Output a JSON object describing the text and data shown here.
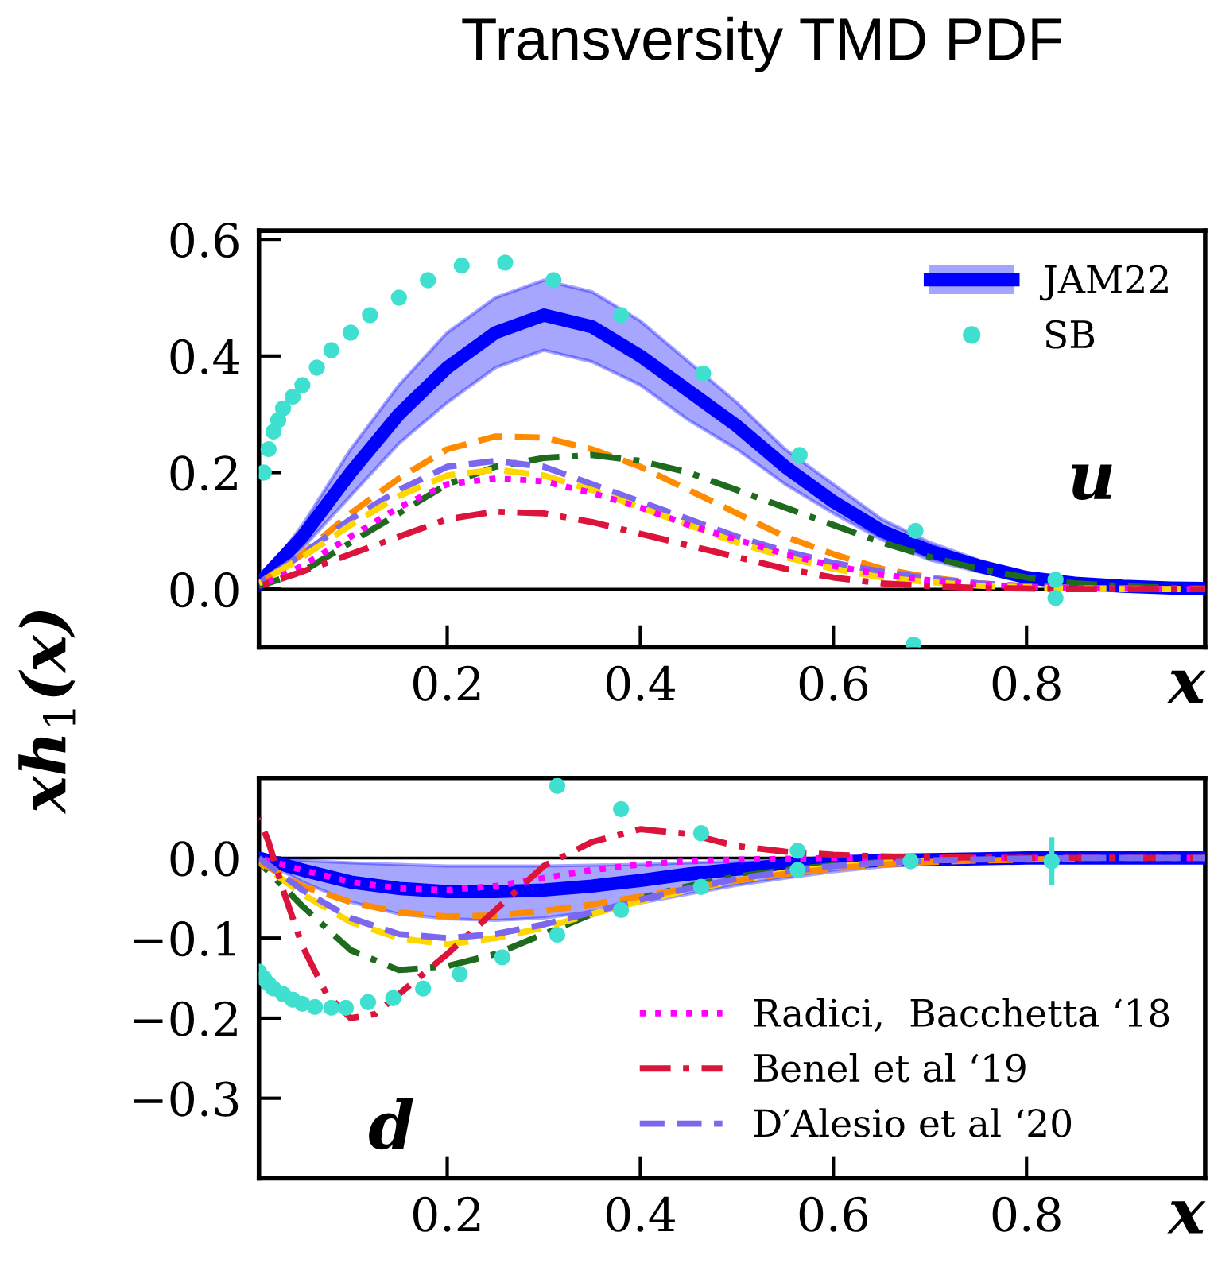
{
  "chart_data": [
    {
      "type": "line",
      "title": "Transversity TMD PDF",
      "ylabel": "xh$_{1}$(x)",
      "xlabel": "x",
      "annotations": [
        "u"
      ],
      "legend": "top right",
      "x": [
        0.005,
        0.05,
        0.1,
        0.15,
        0.2,
        0.25,
        0.3,
        0.35,
        0.4,
        0.45,
        0.5,
        0.55,
        0.6,
        0.65,
        0.7,
        0.75,
        0.8,
        0.85,
        0.9,
        0.95,
        0.985
      ],
      "xlim": [
        0.005,
        0.985
      ],
      "xticks": [
        0.2,
        0.4,
        0.6,
        0.8
      ],
      "ylim": [
        -0.1,
        0.615
      ],
      "yticks": [
        {
          "value": 0.0,
          "label": "0.0"
        },
        {
          "value": 0.2,
          "label": "0.2"
        },
        {
          "value": 0.4,
          "label": "0.4"
        },
        {
          "value": 0.6,
          "label": "0.6"
        }
      ],
      "series": [
        {
          "type": "line",
          "color": "#ff8c00",
          "line_style": "dashed",
          "values": [
            0.01,
            0.06,
            0.13,
            0.19,
            0.24,
            0.262,
            0.26,
            0.24,
            0.21,
            0.17,
            0.13,
            0.09,
            0.06,
            0.035,
            0.02,
            0.01,
            0.005,
            0.002,
            0.001,
            0,
            0
          ]
        },
        {
          "type": "line",
          "color": "#1e6b1e",
          "line_style": "dashdot",
          "values": [
            0.005,
            0.03,
            0.08,
            0.13,
            0.18,
            0.21,
            0.225,
            0.23,
            0.22,
            0.2,
            0.17,
            0.14,
            0.11,
            0.08,
            0.055,
            0.035,
            0.02,
            0.01,
            0.005,
            0.002,
            0.001
          ]
        },
        {
          "type": "line",
          "color": "#7b68ee",
          "line_style": "dashed",
          "values": [
            0.01,
            0.06,
            0.12,
            0.17,
            0.21,
            0.22,
            0.21,
            0.18,
            0.15,
            0.12,
            0.09,
            0.065,
            0.045,
            0.03,
            0.018,
            0.01,
            0.005,
            0.002,
            0.001,
            0,
            0
          ]
        },
        {
          "type": "line",
          "color": "#ffd700",
          "line_style": "dashed",
          "values": [
            0.01,
            0.055,
            0.11,
            0.16,
            0.195,
            0.205,
            0.195,
            0.17,
            0.14,
            0.11,
            0.08,
            0.055,
            0.035,
            0.02,
            0.012,
            0.006,
            0.003,
            0.001,
            0,
            0,
            0
          ]
        },
        {
          "type": "line",
          "color": "#ff00ff",
          "line_style": "dotted",
          "values": [
            0.005,
            0.04,
            0.09,
            0.14,
            0.18,
            0.19,
            0.185,
            0.165,
            0.14,
            0.11,
            0.085,
            0.06,
            0.04,
            0.025,
            0.015,
            0.008,
            0.004,
            0.002,
            0.001,
            0,
            0
          ]
        },
        {
          "type": "line",
          "color": "#dc143c",
          "line_style": "dashdot",
          "values": [
            0.005,
            0.03,
            0.06,
            0.09,
            0.12,
            0.133,
            0.13,
            0.115,
            0.095,
            0.075,
            0.055,
            0.035,
            0.02,
            0.01,
            0.005,
            0.002,
            0.001,
            0,
            0,
            0,
            0
          ]
        },
        {
          "type": "line",
          "name": "JAM22",
          "color": "#0000ff",
          "line_style": "solid",
          "values": [
            0.01,
            0.09,
            0.2,
            0.3,
            0.38,
            0.44,
            0.47,
            0.45,
            0.4,
            0.34,
            0.28,
            0.21,
            0.15,
            0.1,
            0.065,
            0.04,
            0.02,
            0.01,
            0.005,
            0.002,
            0.001
          ],
          "upper": [
            0.01,
            0.11,
            0.24,
            0.35,
            0.44,
            0.5,
            0.53,
            0.51,
            0.46,
            0.39,
            0.32,
            0.24,
            0.18,
            0.12,
            0.08,
            0.05,
            0.025,
            0.012,
            0.006,
            0.003,
            0.001
          ],
          "lower": [
            0.01,
            0.07,
            0.16,
            0.25,
            0.32,
            0.38,
            0.41,
            0.39,
            0.35,
            0.29,
            0.24,
            0.18,
            0.13,
            0.085,
            0.05,
            0.03,
            0.015,
            0.008,
            0.004,
            0.002,
            0.001
          ]
        },
        {
          "type": "scatter",
          "name": "SB",
          "color": "#40e0d0",
          "marker": "circle",
          "x": [
            0.01,
            0.015,
            0.02,
            0.025,
            0.03,
            0.04,
            0.05,
            0.065,
            0.08,
            0.1,
            0.12,
            0.15,
            0.18,
            0.215,
            0.26,
            0.31,
            0.38,
            0.465,
            0.565,
            0.685,
            0.683,
            0.83,
            0.83
          ],
          "values": [
            0.2,
            0.24,
            0.27,
            0.29,
            0.31,
            0.33,
            0.35,
            0.38,
            0.41,
            0.44,
            0.47,
            0.5,
            0.53,
            0.555,
            0.56,
            0.53,
            0.47,
            0.37,
            0.23,
            0.1,
            -0.095,
            0.016,
            -0.015
          ]
        }
      ]
    },
    {
      "type": "line",
      "xlabel": "x",
      "annotations": [
        "d"
      ],
      "legend": "bottom right",
      "x": [
        0.005,
        0.05,
        0.1,
        0.15,
        0.2,
        0.25,
        0.3,
        0.35,
        0.4,
        0.45,
        0.5,
        0.55,
        0.6,
        0.65,
        0.7,
        0.75,
        0.8,
        0.85,
        0.9,
        0.95,
        0.985
      ],
      "xlim": [
        0.005,
        0.985
      ],
      "xticks": [
        0.2,
        0.4,
        0.6,
        0.8
      ],
      "ylim": [
        -0.4,
        0.1
      ],
      "yticks": [
        {
          "value": 0.0,
          "label": "0.0"
        },
        {
          "value": -0.1,
          "label": "−0.1"
        },
        {
          "value": -0.2,
          "label": "−0.2"
        },
        {
          "value": -0.3,
          "label": "−0.3"
        }
      ],
      "series": [
        {
          "type": "line",
          "color": "#0000ff",
          "line_style": "solid",
          "values": [
            0,
            -0.015,
            -0.03,
            -0.038,
            -0.042,
            -0.042,
            -0.04,
            -0.035,
            -0.028,
            -0.02,
            -0.014,
            -0.009,
            -0.005,
            -0.003,
            -0.002,
            -0.001,
            0,
            0,
            0,
            0,
            0
          ],
          "upper": [
            0,
            -0.003,
            -0.006,
            -0.008,
            -0.01,
            -0.01,
            -0.01,
            -0.009,
            -0.008,
            -0.006,
            -0.004,
            -0.003,
            -0.002,
            -0.001,
            -0.001,
            0,
            0,
            0,
            0,
            0,
            0
          ],
          "lower": [
            0,
            -0.03,
            -0.055,
            -0.07,
            -0.076,
            -0.078,
            -0.075,
            -0.067,
            -0.056,
            -0.045,
            -0.034,
            -0.025,
            -0.017,
            -0.011,
            -0.007,
            -0.004,
            -0.002,
            -0.001,
            0,
            0,
            0
          ]
        },
        {
          "type": "line",
          "color": "#1e6b1e",
          "line_style": "dashdot",
          "values": [
            -0.005,
            -0.06,
            -0.115,
            -0.14,
            -0.135,
            -0.12,
            -0.095,
            -0.07,
            -0.05,
            -0.035,
            -0.023,
            -0.015,
            -0.009,
            -0.005,
            null,
            null,
            null,
            null,
            null,
            null,
            null
          ]
        },
        {
          "type": "line",
          "color": "#ffd700",
          "line_style": "dashed",
          "values": [
            -0.005,
            -0.045,
            -0.08,
            -0.1,
            -0.108,
            -0.1,
            -0.087,
            -0.07,
            -0.054,
            -0.04,
            -0.028,
            -0.018,
            -0.011,
            -0.006,
            -0.003,
            null,
            null,
            null,
            null,
            null,
            null
          ]
        },
        {
          "type": "line",
          "color": "#ff8c00",
          "line_style": "dashed",
          "values": [
            -0.005,
            -0.035,
            -0.055,
            -0.068,
            -0.073,
            -0.072,
            -0.066,
            -0.058,
            -0.048,
            -0.038,
            -0.028,
            -0.02,
            -0.013,
            -0.008,
            -0.005,
            -0.003,
            -0.002,
            -0.001,
            null,
            null,
            null
          ]
        },
        {
          "type": "line",
          "name": "Radici,  Bacchetta ‘18",
          "color": "#ff00ff",
          "line_style": "dotted",
          "values": [
            0,
            -0.015,
            -0.03,
            -0.038,
            -0.04,
            -0.035,
            -0.025,
            -0.015,
            -0.008,
            -0.004,
            -0.002,
            -0.001,
            0,
            0,
            0,
            0,
            0,
            0,
            0,
            0,
            0
          ]
        },
        {
          "type": "line",
          "name": "Benel et al ‘19",
          "color": "#dc143c",
          "line_style": "dashdot",
          "x": [
            0.005,
            0.015,
            0.03,
            0.05,
            0.075,
            0.1,
            0.125,
            0.15,
            0.2,
            0.25,
            0.3,
            0.35,
            0.4,
            0.45,
            0.5,
            0.55,
            0.6,
            0.65,
            0.7,
            0.8,
            0.985
          ],
          "values": [
            0.05,
            0.02,
            -0.04,
            -0.11,
            -0.17,
            -0.2,
            -0.195,
            -0.17,
            -0.12,
            -0.065,
            -0.01,
            0.02,
            0.036,
            0.03,
            0.015,
            0.008,
            0.004,
            0.002,
            0.001,
            0,
            0
          ]
        },
        {
          "type": "line",
          "name": "D′Alesio et al ‘20",
          "color": "#7b68ee",
          "line_style": "dashed",
          "values": [
            0,
            -0.04,
            -0.075,
            -0.095,
            -0.1,
            -0.095,
            -0.083,
            -0.068,
            -0.052,
            -0.038,
            -0.026,
            -0.017,
            -0.01,
            -0.006,
            -0.003,
            -0.002,
            -0.001,
            0,
            0,
            0,
            0
          ]
        },
        {
          "type": "scatter",
          "color": "#40e0d0",
          "marker": "circle",
          "x": [
            0.005,
            0.01,
            0.015,
            0.02,
            0.03,
            0.04,
            0.05,
            0.063,
            0.08,
            0.095,
            0.118,
            0.144,
            0.175,
            0.213,
            0.257,
            0.314,
            0.38,
            0.463,
            0.563,
            0.68,
            0.826,
            0.314,
            0.38,
            0.463,
            0.563
          ],
          "values": [
            -0.142,
            -0.15,
            -0.157,
            -0.163,
            -0.17,
            -0.177,
            -0.182,
            -0.186,
            -0.187,
            -0.187,
            -0.18,
            -0.175,
            -0.163,
            -0.145,
            -0.124,
            -0.096,
            -0.065,
            -0.036,
            -0.015,
            -0.004,
            -0.004,
            0.09,
            0.061,
            0.031,
            0.009
          ],
          "errors": [
            null,
            null,
            null,
            null,
            null,
            null,
            null,
            null,
            null,
            null,
            null,
            null,
            null,
            null,
            null,
            null,
            null,
            null,
            null,
            0.008,
            0.03,
            null,
            null,
            null,
            null
          ]
        }
      ]
    }
  ]
}
